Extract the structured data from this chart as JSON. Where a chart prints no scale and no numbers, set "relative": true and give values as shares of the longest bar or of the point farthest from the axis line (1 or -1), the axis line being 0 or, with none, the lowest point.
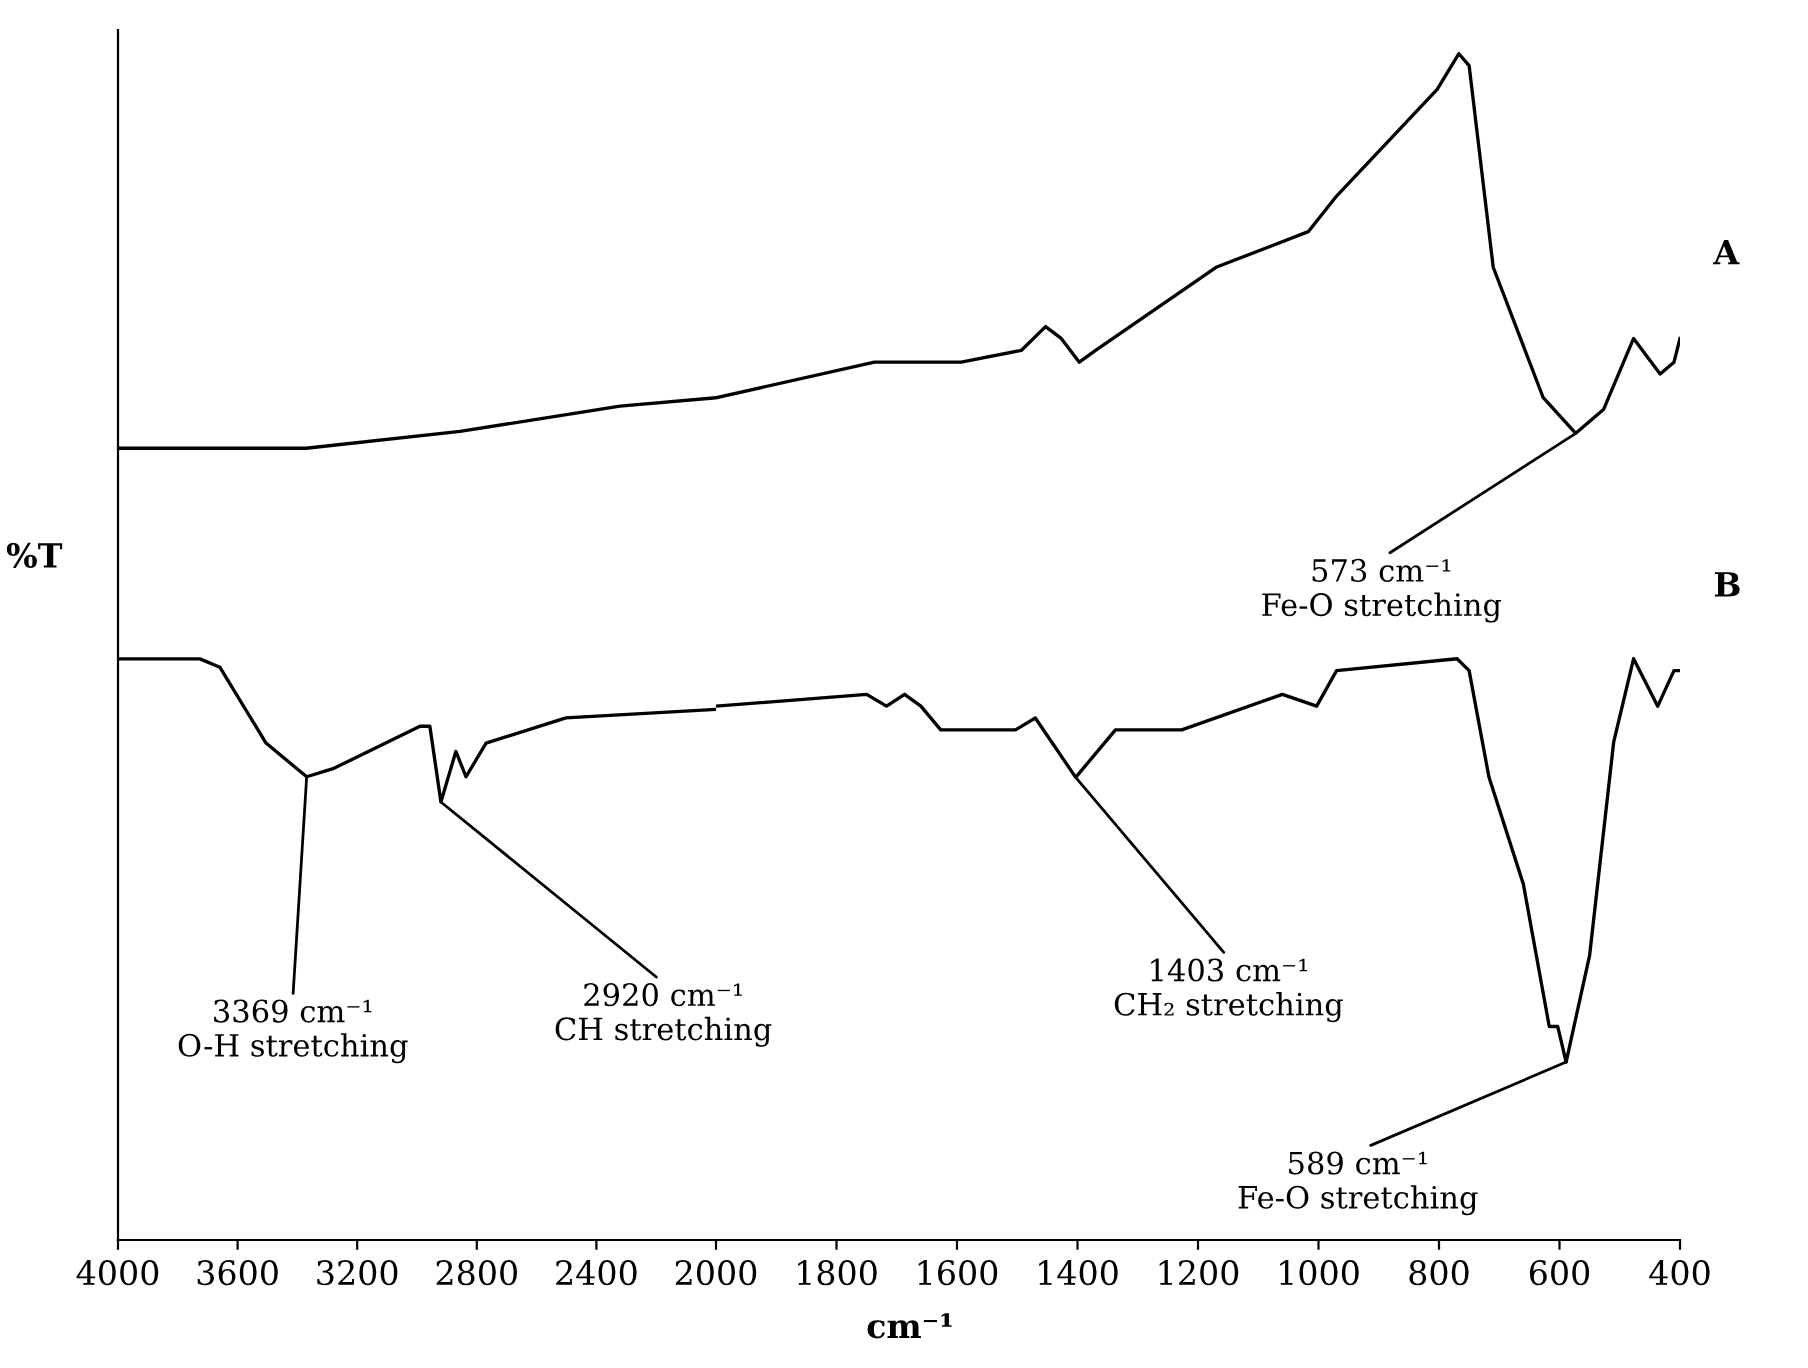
{
  "chart_data": [
    {
      "type": "line",
      "relative": true,
      "ylabel": "%T",
      "xlim": [
        4000,
        2000
      ],
      "xticks": [
        4000,
        3600,
        3200,
        2800,
        2400
      ],
      "series": [
        {
          "color": "#000000",
          "x": [
            4000,
            3391,
            3371,
            2856,
            2321,
            2000
          ],
          "values": [
            0.94,
            0.94,
            0.94,
            0.96,
            0.99,
            1.0
          ]
        },
        {
          "color": "#000000",
          "x": [
            4000,
            3726,
            3659,
            3505,
            3369,
            3278,
            2990,
            2957,
            2920,
            2870,
            2836,
            2769,
            2502,
            2000
          ],
          "values": [
            0.69,
            0.69,
            0.68,
            0.59,
            0.55,
            0.56,
            0.61,
            0.61,
            0.52,
            0.58,
            0.55,
            0.59,
            0.62,
            0.63
          ]
        }
      ],
      "annotations": [
        {
          "text": "3369 cm⁻¹\nO-H stretching",
          "x": 3369,
          "y": 0.55
        },
        {
          "text": "2920 cm⁻¹\nCH stretching",
          "x": 2920,
          "y": 0.52
        }
      ]
    },
    {
      "type": "line",
      "relative": true,
      "xlabel": "cm⁻¹",
      "xlim": [
        2000,
        400
      ],
      "xticks": [
        2000,
        1800,
        1600,
        1400,
        1200,
        1000,
        800,
        600,
        400
      ],
      "series": [
        {
          "name": "A",
          "color": "#000000",
          "x": [
            2000,
            1737,
            1660,
            1593,
            1493,
            1453,
            1427,
            1397,
            1370,
            1170,
            1017,
            970,
            803,
            767,
            750,
            710,
            627,
            573,
            527,
            477,
            433,
            410,
            400
          ],
          "values": [
            0.71,
            0.74,
            0.74,
            0.74,
            0.75,
            0.77,
            0.76,
            0.74,
            0.75,
            0.82,
            0.85,
            0.88,
            0.97,
            1.0,
            0.99,
            0.82,
            0.71,
            0.68,
            0.7,
            0.76,
            0.73,
            0.74,
            0.76
          ]
        },
        {
          "name": "B",
          "color": "#000000",
          "x": [
            2000,
            1750,
            1717,
            1687,
            1660,
            1627,
            1503,
            1470,
            1403,
            1337,
            1227,
            1060,
            1003,
            970,
            770,
            750,
            717,
            660,
            617,
            603,
            589,
            550,
            510,
            477,
            437,
            410,
            400
          ],
          "values": [
            0.45,
            0.46,
            0.45,
            0.46,
            0.45,
            0.43,
            0.43,
            0.44,
            0.39,
            0.43,
            0.43,
            0.46,
            0.45,
            0.48,
            0.49,
            0.48,
            0.39,
            0.3,
            0.18,
            0.18,
            0.15,
            0.24,
            0.42,
            0.49,
            0.45,
            0.48,
            0.48
          ]
        }
      ],
      "annotations": [
        {
          "text": "573 cm⁻¹\nFe-O stretching",
          "x": 573,
          "y": 0.68
        },
        {
          "text": "1403 cm⁻¹\nCH₂ stretching",
          "x": 1403,
          "y": 0.39
        },
        {
          "text": "589 cm⁻¹\nFe-O stretching",
          "x": 589,
          "y": 0.15
        }
      ]
    }
  ]
}
